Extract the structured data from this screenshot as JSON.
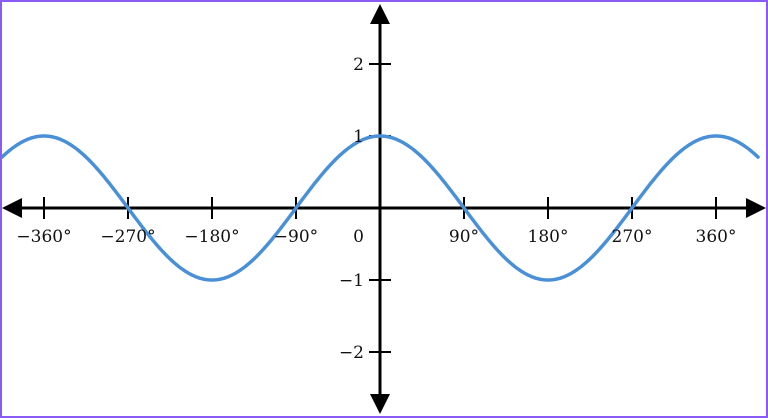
{
  "chart_data": {
    "type": "line",
    "title": "",
    "xlabel": "",
    "ylabel": "",
    "x_ticks": [
      {
        "value": -360,
        "label": "−360°"
      },
      {
        "value": -270,
        "label": "−270°"
      },
      {
        "value": -180,
        "label": "−180°"
      },
      {
        "value": -90,
        "label": "−90°"
      },
      {
        "value": 90,
        "label": "90°"
      },
      {
        "value": 180,
        "label": "180°"
      },
      {
        "value": 270,
        "label": "270°"
      },
      {
        "value": 360,
        "label": "360°"
      }
    ],
    "y_ticks": [
      {
        "value": 2,
        "label": "2"
      },
      {
        "value": 1,
        "label": "1"
      },
      {
        "value": -1,
        "label": "−1"
      },
      {
        "value": -2,
        "label": "−2"
      }
    ],
    "origin_label": "0",
    "xlim": [
      -405,
      405
    ],
    "ylim": [
      -2.75,
      2.75
    ],
    "grid": false,
    "series": [
      {
        "function": "cos",
        "x": [
          -405,
          -360,
          -315,
          -270,
          -225,
          -180,
          -135,
          -90,
          -45,
          0,
          45,
          90,
          135,
          180,
          225,
          270,
          315,
          360,
          405
        ],
        "y": [
          0.707,
          1,
          0.707,
          0,
          -0.707,
          -1,
          -0.707,
          0,
          0.707,
          1,
          0.707,
          0,
          -0.707,
          -1,
          -0.707,
          0,
          0.707,
          1,
          0.707
        ],
        "color": "#4a90d9"
      }
    ],
    "axis_color": "#000000"
  }
}
